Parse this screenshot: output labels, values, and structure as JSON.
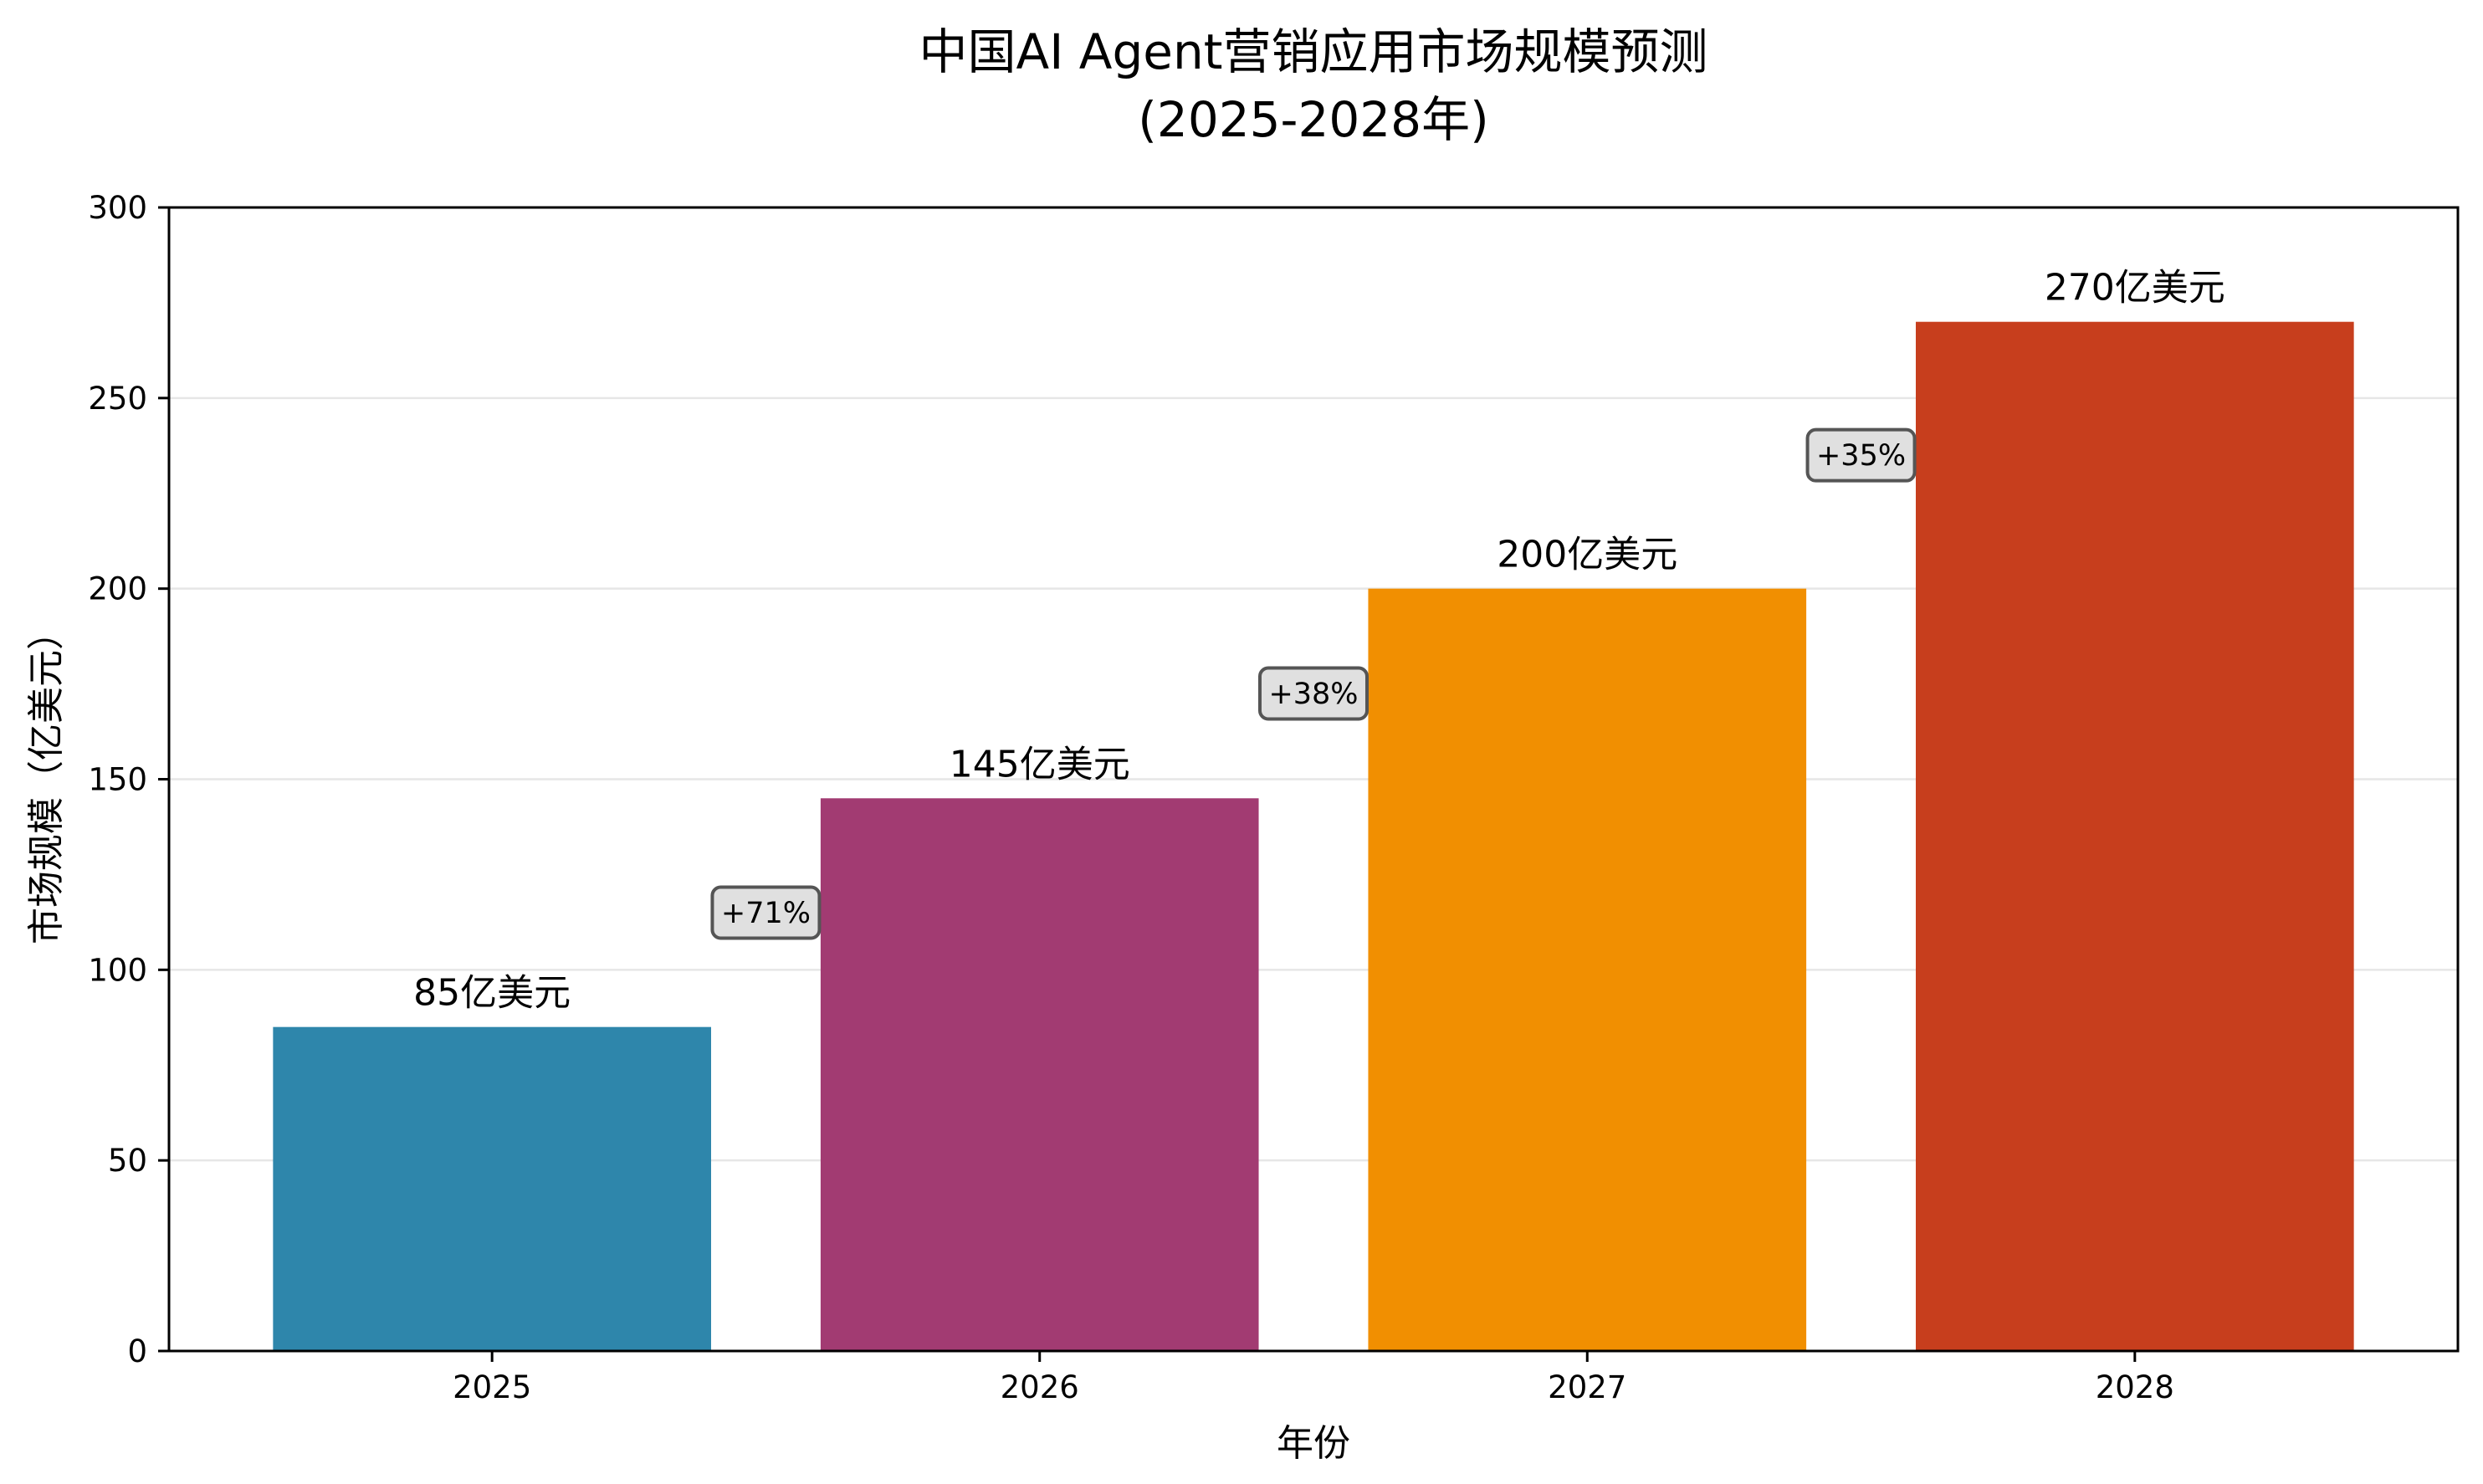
{
  "chart_data": {
    "type": "bar",
    "title": "中国AI Agent营销应用市场规模预测",
    "subtitle": "(2025-2028年)",
    "xlabel": "年份",
    "ylabel": "市场规模（亿美元）",
    "categories": [
      "2025",
      "2026",
      "2027",
      "2028"
    ],
    "values": [
      85,
      145,
      200,
      270
    ],
    "value_labels": [
      "85亿美元",
      "145亿美元",
      "200亿美元",
      "270亿美元"
    ],
    "colors": [
      "#2E86AB",
      "#A23B72",
      "#F18F01",
      "#C73E1D"
    ],
    "ylim": [
      0,
      300
    ],
    "yticks": [
      0,
      50,
      100,
      150,
      200,
      250,
      300
    ],
    "grid": "horizontal",
    "legend": "none",
    "annotations": [
      {
        "text": "+71%",
        "between": [
          "2025",
          "2026"
        ],
        "y": 115
      },
      {
        "text": "+38%",
        "between": [
          "2026",
          "2027"
        ],
        "y": 172.5
      },
      {
        "text": "+35%",
        "between": [
          "2027",
          "2028"
        ],
        "y": 235
      }
    ],
    "annotation_style": {
      "fill": "#E0E0E0",
      "border": "#555555"
    },
    "grid_color": "#E6E6E6"
  }
}
